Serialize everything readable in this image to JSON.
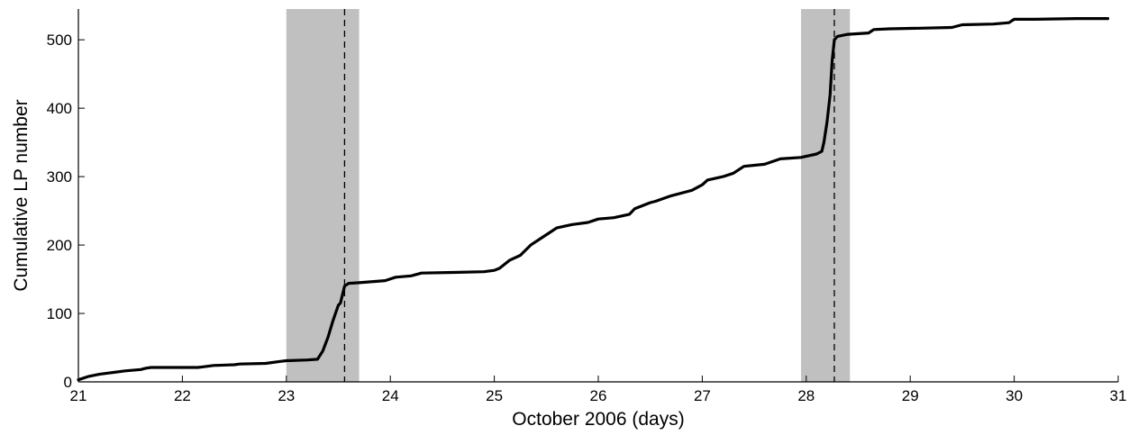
{
  "chart_data": {
    "type": "line",
    "title": "",
    "xlabel": "October 2006 (days)",
    "ylabel": "Cumulative LP number",
    "xlim": [
      21,
      31
    ],
    "ylim": [
      0,
      545
    ],
    "xticks": [
      21,
      22,
      23,
      24,
      25,
      26,
      27,
      28,
      29,
      30,
      31
    ],
    "yticks": [
      0,
      100,
      200,
      300,
      400,
      500
    ],
    "grid": false,
    "legend": "none",
    "colors": {
      "line": "#000000",
      "shade": "#c0c0c0",
      "marker": "#000000"
    },
    "shaded_intervals": [
      {
        "x0": 23.0,
        "x1": 23.7,
        "marker_x": 23.56
      },
      {
        "x0": 27.95,
        "x1": 28.42,
        "marker_x": 28.27
      }
    ],
    "series": [
      {
        "x": [
          21.0,
          21.1,
          21.2,
          21.3,
          21.45,
          21.6,
          21.65,
          21.7,
          21.9,
          22.0,
          22.15,
          22.2,
          22.3,
          22.5,
          22.55,
          22.8,
          22.95,
          23.0,
          23.2,
          23.3,
          23.35,
          23.4,
          23.45,
          23.5,
          23.52,
          23.56,
          23.6,
          23.7,
          23.95,
          24.05,
          24.2,
          24.3,
          24.6,
          24.9,
          25.0,
          25.05,
          25.15,
          25.25,
          25.35,
          25.45,
          25.55,
          25.6,
          25.75,
          25.9,
          26.0,
          26.15,
          26.3,
          26.35,
          26.5,
          26.55,
          26.7,
          26.9,
          27.0,
          27.05,
          27.2,
          27.3,
          27.4,
          27.6,
          27.75,
          27.95,
          28.1,
          28.15,
          28.17,
          28.2,
          28.23,
          28.25,
          28.27,
          28.3,
          28.4,
          28.6,
          28.65,
          28.8,
          29.1,
          29.4,
          29.5,
          29.8,
          29.95,
          30.0,
          30.2,
          30.6,
          30.9
        ],
        "y": [
          3,
          8,
          11,
          13,
          16,
          18,
          20,
          21,
          21,
          21,
          21,
          22,
          24,
          25,
          26,
          27,
          30,
          31,
          32,
          33,
          45,
          65,
          90,
          112,
          115,
          140,
          144,
          145,
          148,
          153,
          155,
          159,
          160,
          161,
          163,
          166,
          178,
          185,
          200,
          210,
          220,
          225,
          230,
          233,
          238,
          240,
          245,
          253,
          262,
          264,
          272,
          280,
          288,
          295,
          300,
          305,
          315,
          318,
          326,
          328,
          333,
          337,
          350,
          380,
          420,
          470,
          500,
          505,
          508,
          510,
          515,
          516,
          517,
          518,
          522,
          523,
          525,
          530,
          530,
          531,
          531
        ]
      }
    ]
  }
}
